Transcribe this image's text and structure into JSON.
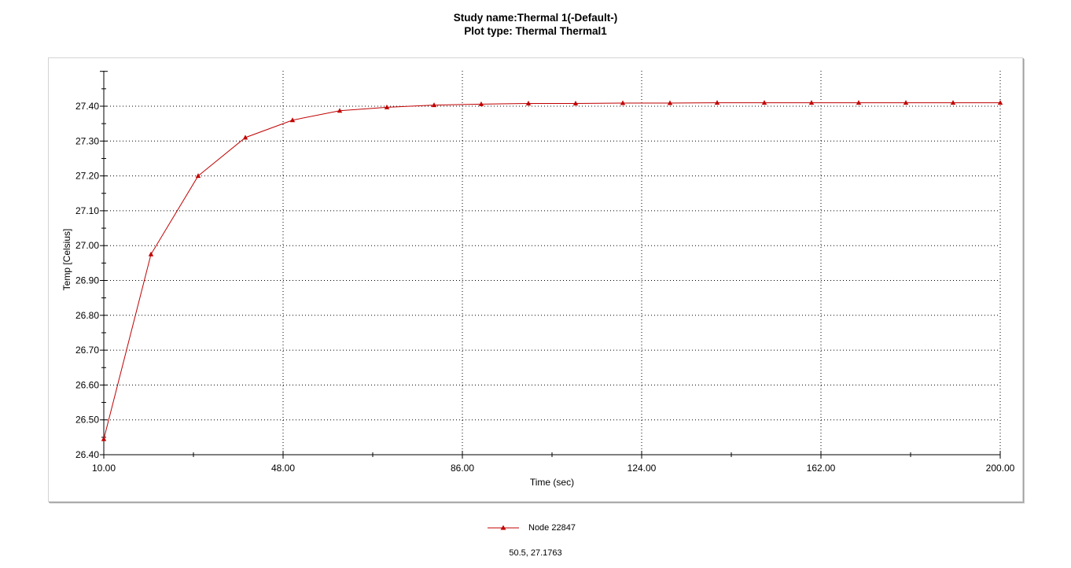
{
  "header": {
    "study_name": "Study name:Thermal 1(-Default-)",
    "plot_type": "Plot type: Thermal Thermal1"
  },
  "chart_data": {
    "type": "line",
    "xlabel": "Time (sec)",
    "ylabel": "Temp [Celsius]",
    "xlim": [
      10,
      200
    ],
    "ylim": [
      26.4,
      27.5
    ],
    "x_ticks": [
      10,
      48,
      86,
      124,
      162,
      200
    ],
    "x_tick_labels": [
      "10.00",
      "48.00",
      "86.00",
      "124.00",
      "162.00",
      "200.00"
    ],
    "y_ticks": [
      26.4,
      26.5,
      26.6,
      26.7,
      26.8,
      26.9,
      27.0,
      27.1,
      27.2,
      27.3,
      27.4
    ],
    "y_tick_labels": [
      "26.40",
      "26.50",
      "26.60",
      "26.70",
      "26.80",
      "26.90",
      "27.00",
      "27.10",
      "27.20",
      "27.30",
      "27.40"
    ],
    "grid": true,
    "legend_position": "bottom-center",
    "series": [
      {
        "name": "Node 22847",
        "color": "#c00000",
        "marker": "triangle",
        "x": [
          10,
          20,
          30,
          40,
          50,
          60,
          70,
          80,
          90,
          100,
          110,
          120,
          130,
          140,
          150,
          160,
          170,
          180,
          190,
          200
        ],
        "y": [
          26.445,
          26.975,
          27.2,
          27.31,
          27.36,
          27.387,
          27.397,
          27.403,
          27.406,
          27.408,
          27.408,
          27.409,
          27.409,
          27.41,
          27.41,
          27.41,
          27.41,
          27.41,
          27.41,
          27.41
        ]
      }
    ]
  },
  "status": {
    "cursor_readout": "50.5, 27.1763"
  }
}
